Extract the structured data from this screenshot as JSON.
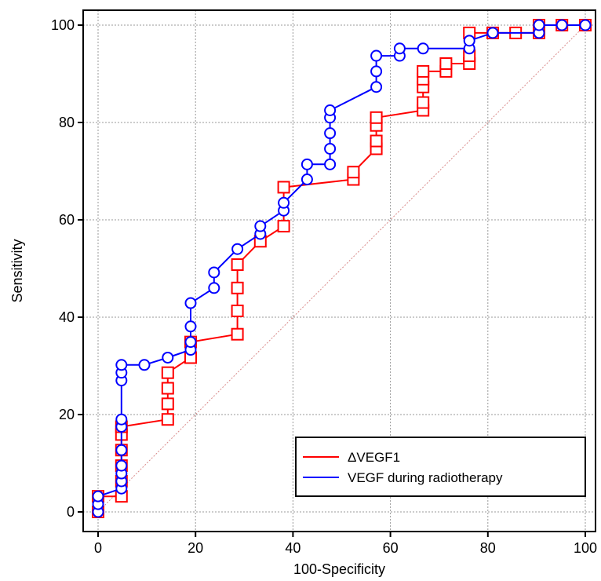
{
  "chart_data": {
    "type": "line",
    "xlabel": "100-Specificity",
    "ylabel": "Sensitivity",
    "xlim": [
      0,
      100
    ],
    "ylim": [
      0,
      100
    ],
    "xticks": [
      0,
      20,
      40,
      60,
      80,
      100
    ],
    "yticks": [
      0,
      20,
      40,
      60,
      80,
      100
    ],
    "grid": true,
    "legend_position": "bottom-right",
    "reference_line": {
      "x": [
        0,
        100
      ],
      "y": [
        0,
        100
      ],
      "color": "#d98a8a"
    },
    "series": [
      {
        "name": "ΔVEGF1",
        "color": "#ff0000",
        "marker": "square",
        "points": [
          [
            0,
            0
          ],
          [
            0,
            3.2
          ],
          [
            4.8,
            3.2
          ],
          [
            4.8,
            6.3
          ],
          [
            4.8,
            9.5
          ],
          [
            4.8,
            12.7
          ],
          [
            4.8,
            15.9
          ],
          [
            4.8,
            17.5
          ],
          [
            14.3,
            19.0
          ],
          [
            14.3,
            22.2
          ],
          [
            14.3,
            25.4
          ],
          [
            14.3,
            28.6
          ],
          [
            19.0,
            31.7
          ],
          [
            19.0,
            34.9
          ],
          [
            28.6,
            36.5
          ],
          [
            28.6,
            41.3
          ],
          [
            28.6,
            46.0
          ],
          [
            28.6,
            50.8
          ],
          [
            33.3,
            55.6
          ],
          [
            38.1,
            58.7
          ],
          [
            38.1,
            66.7
          ],
          [
            52.4,
            68.3
          ],
          [
            52.4,
            69.8
          ],
          [
            57.1,
            74.6
          ],
          [
            57.1,
            76.2
          ],
          [
            57.1,
            79.4
          ],
          [
            57.1,
            81.0
          ],
          [
            66.7,
            82.5
          ],
          [
            66.7,
            84.1
          ],
          [
            66.7,
            87.3
          ],
          [
            66.7,
            88.9
          ],
          [
            66.7,
            90.5
          ],
          [
            71.4,
            90.5
          ],
          [
            71.4,
            92.1
          ],
          [
            76.2,
            92.1
          ],
          [
            76.2,
            93.7
          ],
          [
            76.2,
            98.4
          ],
          [
            81.0,
            98.4
          ],
          [
            85.7,
            98.4
          ],
          [
            90.5,
            98.4
          ],
          [
            90.5,
            100
          ],
          [
            95.2,
            100
          ],
          [
            100,
            100
          ]
        ]
      },
      {
        "name": "VEGF during radiotherapy",
        "color": "#0000ff",
        "marker": "circle",
        "points": [
          [
            0,
            0
          ],
          [
            0,
            1.6
          ],
          [
            0,
            3.2
          ],
          [
            4.8,
            4.8
          ],
          [
            4.8,
            6.3
          ],
          [
            4.8,
            7.9
          ],
          [
            4.8,
            9.5
          ],
          [
            4.8,
            12.7
          ],
          [
            4.8,
            17.5
          ],
          [
            4.8,
            19.0
          ],
          [
            4.8,
            27.0
          ],
          [
            4.8,
            28.6
          ],
          [
            4.8,
            30.2
          ],
          [
            9.5,
            30.2
          ],
          [
            14.3,
            31.7
          ],
          [
            19.0,
            33.3
          ],
          [
            19.0,
            34.9
          ],
          [
            19.0,
            38.1
          ],
          [
            19.0,
            42.9
          ],
          [
            23.8,
            46.0
          ],
          [
            23.8,
            49.2
          ],
          [
            28.6,
            54.0
          ],
          [
            33.3,
            57.1
          ],
          [
            33.3,
            58.7
          ],
          [
            38.1,
            61.9
          ],
          [
            38.1,
            63.5
          ],
          [
            42.9,
            68.3
          ],
          [
            42.9,
            71.4
          ],
          [
            47.6,
            71.4
          ],
          [
            47.6,
            74.6
          ],
          [
            47.6,
            77.8
          ],
          [
            47.6,
            81.0
          ],
          [
            47.6,
            82.5
          ],
          [
            57.1,
            87.3
          ],
          [
            57.1,
            90.5
          ],
          [
            57.1,
            93.7
          ],
          [
            61.9,
            93.7
          ],
          [
            61.9,
            95.2
          ],
          [
            66.7,
            95.2
          ],
          [
            76.2,
            95.2
          ],
          [
            76.2,
            96.8
          ],
          [
            81.0,
            98.4
          ],
          [
            90.5,
            98.4
          ],
          [
            90.5,
            100
          ],
          [
            95.2,
            100
          ],
          [
            100,
            100
          ]
        ]
      }
    ]
  }
}
